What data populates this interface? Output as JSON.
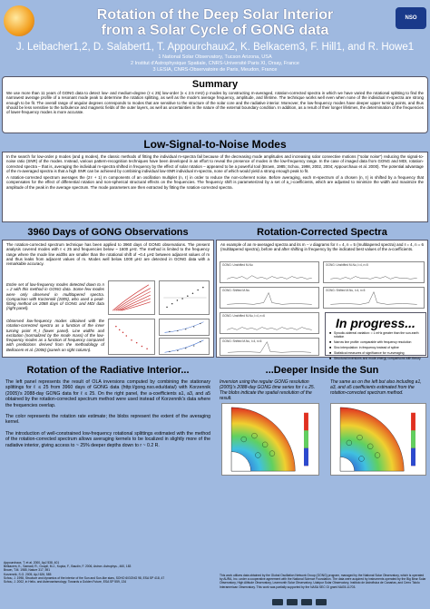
{
  "header": {
    "title_line1": "Rotation of the Deep Solar Interior",
    "title_line2": "from a Solar Cycle of GONG data",
    "authors": "J. Leibacher1,2, D. Salabert1, T. Appourchaux2, K. Belkacem3, F. Hill1, and R. Howe1",
    "affiliations": [
      "1 National Solar Observatory, Tucson Arizona, USA",
      "2 Institut d'Astrophysique Spatiale, CNRS-Université Paris XI, Orsay, France",
      "3 LESIA, CNRS-Observatoire de Paris, Meudon, France"
    ],
    "logo_right": "NSO"
  },
  "summary": {
    "title": "Summary",
    "text": "We use more than 11 years of GONG data to detect low- and medium-degree (ℓ ≤ 25) low-order (ν ≤ 2.5 mHz) p modes by constructing m-averaged, rotation-corrected spectra in which we have varied the rotational splitting to find the narrowest average profile of a resonant mode peak to determine the rotation splitting, as well as the mode's average frequency, amplitude, and lifetime. The technique works well even when none of the individual m-spectra are strong enough to be fit. The overall range of angular degrees corresponds to modes that are sensitive to the structure of the solar core and the radiative interior. Moreover, the low-frequency modes have deeper upper turning points, and thus should be less sensitive to the turbulence and magnetic fields of the outer layers, as well as uncertainties in the nature of the external boundary condition. In addition, as a result of their longer lifetimes, the determination of the frequencies of lower-frequency modes is more accurate."
  },
  "lsn": {
    "title": "Low-Signal-to-Noise Modes",
    "p1": "In the search for low-order p modes (and g modes), the classic methods of fitting the individual m-spectra fail because of the decreasing mode amplitudes and increasing solar convective motions (\"solar noise\") reducing the signal-to-noise ratio (SNR) of the modes. Instead, various pattern-recognition techniques have been developed in an effort to reveal the presence of modes in the low-frequency range. In the case of imaged data from GONG and MDI, rotation-corrected spectra – that is, averaging the individual m-spectra shifted in frequency by the effect of solar rotation – appeared to be a powerful tool (Brown, 1985; Schou, 1998, 2002, 2004; Appourchaux et al. 2000). The potential advantage of the m-averaged spectra is that a high SNR can be achieved by combining individual low-SNR individual m-spectra, none of which would yield a strong enough peak to fit.",
    "p2": "A rotation-corrected spectrum averages the (2ℓ + 1) m components of an oscillation multiplet (n, ℓ) in order to reduce the non-coherent noise. Before averaging, each m-spectrum of a chosen (n, ℓ) is shifted by a frequency that compensates for the effect of differential rotation and non-spherical structural effects on the frequencies. The frequency shift is parameterized by a set of a_i-coefficients, which are adjusted to minimize the width and maximize the amplitude of the peak in the average spectrum. The mode parameters are then extracted by fitting the rotation-corrected spectra."
  },
  "gong": {
    "title": "3960 Days of GONG Observations",
    "text": "The rotation-corrected spectrum technique has been applied to 3960 days of GONG observations. The present analysis covered modes with ℓ ≤ 25 and frequencies below ~ 1600 μHz. The method is limited to the frequency range where the mode line widths are smaller than the rotational shift of ~0.4 μHz between adjacent values of m and thus leaks from adjacent values of m. Modes well below 1000 μHz are detected in GONG data with a remarkable accuracy.",
    "note1": "Entire set of low-frequency modes detected down to n = 2 with this method in GONG data. Some few modes were only observed in multitapered spectra. Comparison with Korzennik (2005), who used a peak-fitting method on 2088 days of GONG and MDI data (right panel).",
    "note2": "Observed low-frequency modes obtained with the rotation-corrected spectra as a function of the inner turning point R_t (lower panel). Line widths and excitation (normalized by the mode mass) of the low-frequency modes as a function of frequency compared with predictions derived from the methodology of Belkacem et al. (2006) (panels on right column)."
  },
  "rcs": {
    "title": "Rotation-Corrected Spectra",
    "text": "An example of an m-averaged spectra and its m − ν diagrams for ℓ = 4, n = 5 (multitapered spectra) and ℓ = 4, n = 6 (multitapered spectra), before and after shifting in frequency by the indicated best values of the a-coefficients.",
    "plot_titles": [
      "GONG: Unshifted M-Nu",
      "GONG: Unshifted M-Nu, l=4, n=5",
      "GONG: Shifted M-Nu",
      "GONG: Shifted M-Nu, l=4, n=5",
      "GONG: Unshifted M-Nu, l=4, n=6",
      "GONG: Shifted M-Nu, l=4, n=6"
    ]
  },
  "progress": {
    "title": "In progress...",
    "bullets": [
      "Synodic-sidereal variation: ≈ 1 mHz greater than the sun-earth rotation",
      "Narrow line profile: comparable with frequency resolution",
      "Sinc interpolation: in frequency instead of spline",
      "Statistical measures of significance for m-averaging",
      "Structural inversions and mode-energy comparisons with theory"
    ]
  },
  "radiative": {
    "title": "Rotation of the Radiative Interior...",
    "p1": "The left panel represents the result of OLA inversions computed by combining the stationary splittings for ℓ ≤ 25 from 3960 days of GONG data (http://gong.nso.edu/data/) with Korzennik (2005)'s 2088-day GONG data for ℓ ≤ 25. On the right panel, the a-coefficients a1, a3, and a5 obtained by the rotation-corrected spectrum method were used instead of Korzennik's data where the frequencies overlap.",
    "p2": "The color represents the rotation rate estimate; the blobs represent the extent of the averaging kernel.",
    "p3": "The introduction of well-constrained low-frequency rotational splittings estimated with the method of the rotation-corrected spectrum allows averaging kernels to be localized in slightly more of the radiative interior, giving access to ~ 25% deeper depths down to r ~ 0.2 R."
  },
  "deeper": {
    "title": "...Deeper Inside the Sun",
    "left_note": "Inversion using the regular GONG resolution (2005)'s 2088-day GONG time series for ℓ ≤ 25. The blobs indicate the spatial resolution of the result.",
    "right_note": "The same as on the left but also including a1, a3, and a5 coefficients estimated from the rotation-corrected spectrum method."
  },
  "references": [
    "Appourchaux, T. et al. 2000, ApJ 538, 401",
    "Belkacem, K., Samadi, R., Goupil, M.J., Kupka, F., Baudin, F. 2006, Astron. Astrophys., 460, 183",
    "Brown, T.M. 1985, Nature 317, 591",
    "Korzennik, S.G. 2005, ApJ 626, 585",
    "Schou, J. 1998, Structure and dynamics of the interior of the Sun and Sun-like stars, SOHO 6/GONG 98, ESA SP 418, 47",
    "Schou, J. 2002, in Helio- and Asteroseismology: Towards a Golden Future, ESA SP 559, 134"
  ],
  "acknowledgment": "This work utilizes data obtained by the Global Oscillation Network Group (GONG) program, managed by the National Solar Observatory, which is operated by AURA, Inc. under a cooperative agreement with the National Science Foundation. The data were acquired by instruments operated by the Big Bear Solar Observatory, High Altitude Observatory, Learmonth Solar Observatory, Udaipur Solar Observatory, Instituto de Astrofisica de Canarias, and Cerro Tololo Interamerican Observatory. This work was partially supported by the NASA SEC GI grant NAG5-11703.",
  "colors": {
    "background": "#9fb9e0",
    "box": "#ffffff",
    "title_white": "#ffffff"
  }
}
